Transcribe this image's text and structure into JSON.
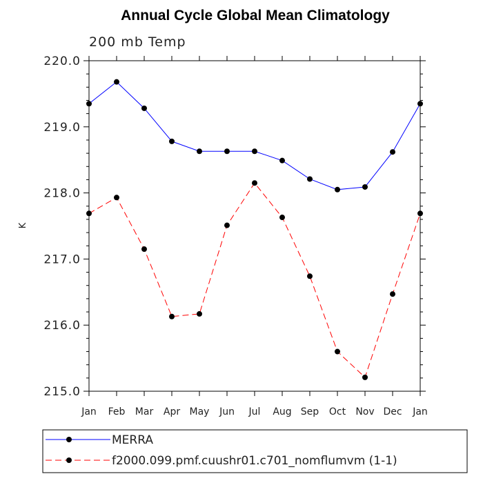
{
  "chart_data": {
    "type": "line",
    "title": "Annual Cycle Global Mean Climatology",
    "subtitle": "200 mb Temp",
    "xlabel": "",
    "ylabel": "K",
    "categories": [
      "Jan",
      "Feb",
      "Mar",
      "Apr",
      "May",
      "Jun",
      "Jul",
      "Aug",
      "Sep",
      "Oct",
      "Nov",
      "Dec",
      "Jan"
    ],
    "ylim": [
      215.0,
      220.0
    ],
    "yticks": [
      "215.0",
      "216.0",
      "217.0",
      "218.0",
      "219.0",
      "220.0"
    ],
    "series": [
      {
        "name": "MERRA",
        "color": "#0000ff",
        "dash": "solid",
        "values": [
          219.35,
          219.68,
          219.28,
          218.78,
          218.63,
          218.63,
          218.63,
          218.49,
          218.21,
          218.05,
          218.09,
          218.62,
          219.35
        ]
      },
      {
        "name": "f2000.099.pmf.cuushr01.c701_nomflumvm (1-1)",
        "color": "#ff0000",
        "dash": "dashed",
        "values": [
          217.69,
          217.93,
          217.15,
          216.13,
          216.17,
          217.51,
          218.15,
          217.63,
          216.74,
          215.6,
          215.21,
          216.47,
          217.69
        ]
      }
    ],
    "grid": false,
    "legend_position": "bottom"
  }
}
